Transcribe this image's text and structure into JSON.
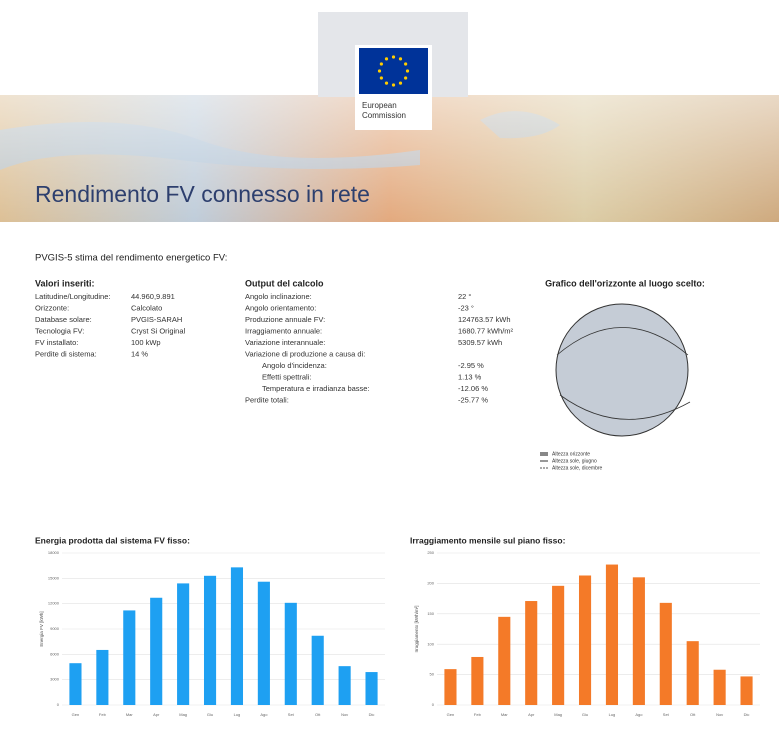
{
  "header": {
    "logo_text": [
      "European",
      "Commission"
    ],
    "title": "Rendimento FV connesso in rete"
  },
  "intro": "PVGIS-5 stima del rendimento energetico FV:",
  "inputs": {
    "heading": "Valori inseriti:",
    "rows": [
      [
        "Latitudine/Longitudine:",
        "44.960,9.891"
      ],
      [
        "Orizzonte:",
        "Calcolato"
      ],
      [
        "Database solare:",
        "PVGIS-SARAH"
      ],
      [
        "Tecnologia FV:",
        "Cryst Si Original"
      ],
      [
        "FV installato:",
        "100 kWp"
      ],
      [
        "Perdite di sistema:",
        "14 %"
      ]
    ]
  },
  "outputs": {
    "heading": "Output del calcolo",
    "rows": [
      [
        "Angolo inclinazione:",
        "22 °"
      ],
      [
        "Angolo orientamento:",
        "-23 °"
      ],
      [
        "Produzione annuale FV:",
        "124763.57 kWh"
      ],
      [
        "Irraggiamento annuale:",
        "1680.77 kWh/m²"
      ],
      [
        "Variazione interannuale:",
        "5309.57 kWh"
      ]
    ],
    "variation_heading": "Variazione di produzione a causa di:",
    "variation_rows": [
      [
        "Angolo d'incidenza:",
        "-2.95 %"
      ],
      [
        "Effetti spettrali:",
        "1.13 %"
      ],
      [
        "Temperatura e irradianza basse:",
        "-12.06 %"
      ]
    ],
    "total": [
      "Perdite totali:",
      "-25.77 %"
    ]
  },
  "horizon": {
    "title": "Grafico dell'orizzonte al luogo scelto:",
    "legend": [
      "Altezza orizzonte",
      "Altezza sole, giugno",
      "Altezza sole, dicembre"
    ]
  },
  "chart_data": [
    {
      "type": "bar",
      "title": "Energia prodotta dal sistema FV fisso:",
      "y_label": "Energia FV [kWh]",
      "color": "#1ea0f2",
      "categories": [
        "Gen",
        "Feb",
        "Mar",
        "Apr",
        "Mag",
        "Giu",
        "Lug",
        "Ago",
        "Set",
        "Ott",
        "Nov",
        "Dic"
      ],
      "values": [
        4950,
        6520,
        11200,
        12700,
        14400,
        15300,
        16300,
        14600,
        12100,
        8200,
        4600,
        3900
      ],
      "ylim": [
        0,
        18000
      ],
      "yticks": [
        0,
        3000,
        6000,
        9000,
        12000,
        15000,
        18000
      ],
      "grid": true
    },
    {
      "type": "bar",
      "title": "Irraggiamento mensile sul piano fisso:",
      "y_label": "Irraggiamento [kWh/m²]",
      "color": "#f47a28",
      "categories": [
        "Gen",
        "Feb",
        "Mar",
        "Apr",
        "Mag",
        "Giu",
        "Lug",
        "Ago",
        "Set",
        "Ott",
        "Nov",
        "Dic"
      ],
      "values": [
        59,
        79,
        145,
        171,
        196,
        213,
        231,
        210,
        168,
        105,
        58,
        47
      ],
      "ylim": [
        0,
        250
      ],
      "yticks": [
        0,
        50,
        100,
        150,
        200,
        250
      ],
      "grid": true
    }
  ]
}
